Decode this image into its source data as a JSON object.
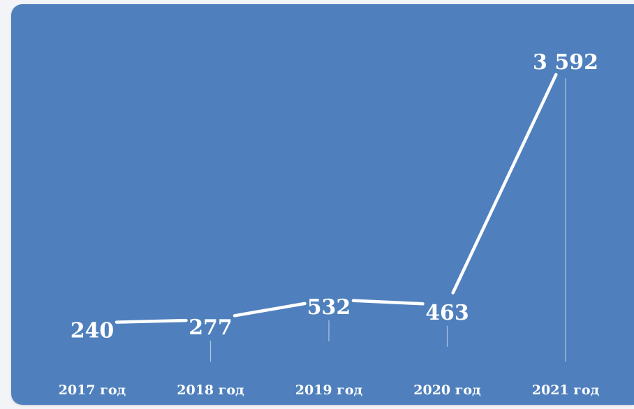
{
  "chart_data": {
    "type": "line",
    "categories": [
      "2017 год",
      "2018 год",
      "2019 год",
      "2020 год",
      "2021 год"
    ],
    "values": [
      240,
      277,
      532,
      463,
      3592
    ],
    "data_labels": [
      "240",
      "277",
      "532",
      "463",
      "3 592"
    ],
    "title": "",
    "xlabel": "",
    "ylabel": "",
    "grid": false,
    "legend": "none",
    "colors": {
      "background": "#4f80bd",
      "line": "#ffffff",
      "text": "#ffffff"
    }
  }
}
